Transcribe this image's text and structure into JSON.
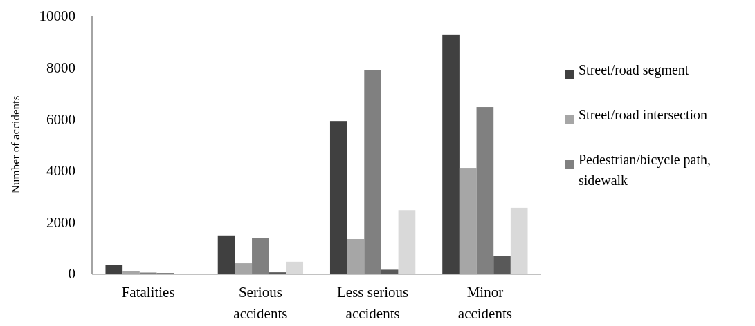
{
  "chart_data": {
    "type": "bar",
    "ylabel": "Number of accidents",
    "categories": [
      "Fatalities",
      "Serious accidents",
      "Less serious accidents",
      "Minor accidents"
    ],
    "series": [
      {
        "name": "Street/road segment",
        "color": "#404040",
        "values": [
          330,
          1480,
          5920,
          9280
        ]
      },
      {
        "name": "Street/road intersection",
        "color": "#a6a6a6",
        "values": [
          100,
          400,
          1340,
          4100
        ]
      },
      {
        "name": "Pedestrian/bicycle path, sidewalk",
        "color": "#808080",
        "values": [
          40,
          1380,
          7890,
          6460
        ]
      },
      {
        "color": "#595959",
        "values": [
          20,
          50,
          150,
          680
        ]
      },
      {
        "color": "#d9d9d9",
        "values": [
          null,
          460,
          2460,
          2550
        ]
      }
    ],
    "ylim": [
      0,
      10000
    ],
    "yticks": [
      0,
      2000,
      4000,
      6000,
      8000,
      10000
    ],
    "grid": false,
    "legend": "right"
  }
}
